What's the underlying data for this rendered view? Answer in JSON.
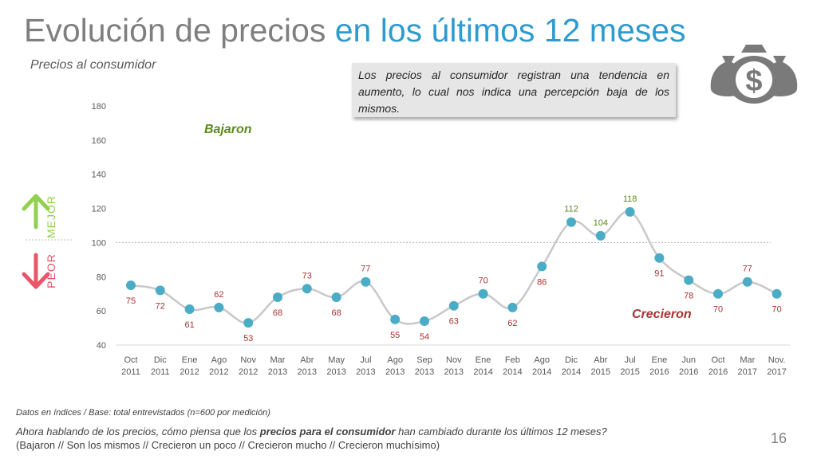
{
  "header": {
    "title_main": "Evolución de precios ",
    "title_accent": "en los últimos 12 meses",
    "subtitle": "Precios al consumidor",
    "note": "Los precios al consumidor registran una tendencia en aumento, lo cual nos indica una percepción baja de los mismos."
  },
  "side": {
    "mejor": "MEJOR",
    "peor": "PEOR"
  },
  "icons": {
    "up_arrow": "arrow-up-icon",
    "down_arrow": "arrow-down-icon",
    "money": "money-bags-icon"
  },
  "colors": {
    "line": "#c8c8c8",
    "marker": "#4bacc6",
    "high_label": "#5a8a1e",
    "low_label": "#a83232",
    "title_accent": "#2e9bd0",
    "mejor": "#92d050",
    "peor": "#e8566a"
  },
  "chart_data": {
    "type": "line",
    "categories": [
      [
        "Oct",
        "2011"
      ],
      [
        "Dic",
        "2011"
      ],
      [
        "Ene",
        "2012"
      ],
      [
        "Ago",
        "2012"
      ],
      [
        "Nov",
        "2012"
      ],
      [
        "Mar",
        "2013"
      ],
      [
        "Abr",
        "2013"
      ],
      [
        "May",
        "2013"
      ],
      [
        "Jul",
        "2013"
      ],
      [
        "Ago",
        "2013"
      ],
      [
        "Sep",
        "2013"
      ],
      [
        "Nov",
        "2013"
      ],
      [
        "Ene",
        "2014"
      ],
      [
        "Feb",
        "2014"
      ],
      [
        "Ago",
        "2014"
      ],
      [
        "Dic",
        "2014"
      ],
      [
        "Abr",
        "2015"
      ],
      [
        "Jul",
        "2015"
      ],
      [
        "Ene",
        "2016"
      ],
      [
        "Jun",
        "2016"
      ],
      [
        "Oct",
        "2016"
      ],
      [
        "Mar",
        "2017"
      ],
      [
        "Nov.",
        "2017"
      ]
    ],
    "values": [
      75,
      72,
      61,
      62,
      53,
      68,
      73,
      68,
      77,
      55,
      54,
      63,
      70,
      62,
      86,
      112,
      104,
      118,
      91,
      78,
      70,
      77,
      70
    ],
    "ylim": [
      40,
      180
    ],
    "yticks": [
      "40",
      "60",
      "80",
      "100",
      "120",
      "140",
      "160",
      "180"
    ],
    "reference_line": 100,
    "annotations": {
      "top": "Bajaron",
      "bottom": "Crecieron"
    },
    "grid": false,
    "legend": "none"
  },
  "footer": {
    "source": "Datos en índices / Base: total entrevistados (n=600 por medición)",
    "question_pre": "Ahora hablando de los precios, cómo piensa que los ",
    "question_bold": "precios para el consumidor",
    "question_post": " han cambiado durante los últimos 12 meses?",
    "options": "(Bajaron // Son los mismos // Crecieron un poco // Crecieron mucho // Crecieron muchísimo)",
    "page": "16"
  }
}
